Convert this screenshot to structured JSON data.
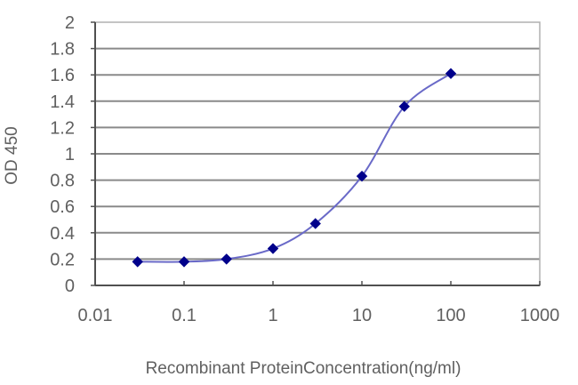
{
  "chart_data": {
    "type": "line",
    "title": "",
    "xlabel": "Recombinant ProteinConcentration(ng/ml)",
    "ylabel": "OD 450",
    "xscale": "log",
    "xlim": [
      0.01,
      1000
    ],
    "ylim": [
      0,
      2
    ],
    "x_ticks": [
      "0.01",
      "0.1",
      "1",
      "10",
      "100",
      "1000"
    ],
    "y_ticks": [
      "0",
      "0.2",
      "0.4",
      "0.6",
      "0.8",
      "1",
      "1.2",
      "1.4",
      "1.6",
      "1.8",
      "2"
    ],
    "grid": {
      "horizontal": true,
      "vertical": false
    },
    "legend": null,
    "series": [
      {
        "name": "OD 450",
        "color": "#00008b",
        "line_color": "#6a6ac8",
        "marker": "diamond",
        "x": [
          0.03,
          0.1,
          0.3,
          1,
          3,
          10,
          30,
          100
        ],
        "values": [
          0.18,
          0.18,
          0.2,
          0.28,
          0.47,
          0.83,
          1.36,
          1.61
        ]
      }
    ]
  },
  "colors": {
    "grid": "#8a8a8a",
    "axis": "#505050",
    "plot_border": "#b0b0b0",
    "marker": "#00008b",
    "line": "#6a6ac8"
  }
}
